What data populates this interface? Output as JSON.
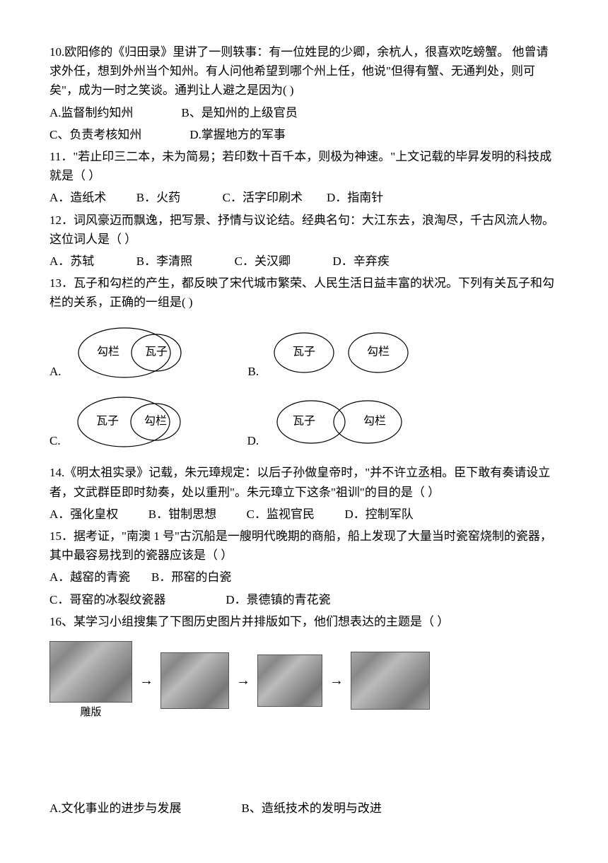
{
  "q10": {
    "text": "10.欧阳修的《归田录》里讲了一则轶事：有一位姓昆的少卿，余杭人，很喜欢吃螃蟹。  他曾请求外任，想到外州当个知州。有人问他希望到哪个州上任，他说\"但得有蟹、无通判处，则可矣\"，成为一时之笑谈。通判让人避之是因为(      )",
    "optA": "A.监督制约知州",
    "optB": "B、是知州的上级官员",
    "optC": "C、负责考核知州",
    "optD": "D.掌握地方的军事"
  },
  "q11": {
    "text": "11．\"若止印三二本，未为简易；若印数十百千本，则极为神速。\"上文记载的毕昇发明的科技成就是（    ）",
    "optA": "A．造纸术",
    "optB": "B．火药",
    "optC": "C．活字印刷术",
    "optD": "D．指南针"
  },
  "q12": {
    "text": "12．词风豪迈而飘逸，把写景、抒情与议论结。经典名句：大江东去，浪淘尽，千古风流人物。这位词人是（      ）",
    "optA": "A．苏轼",
    "optB": "B．李清照",
    "optC": "C．关汉卿",
    "optD": "D．辛弃疾"
  },
  "q13": {
    "text": "13．瓦子和勾栏的产生，都反映了宋代城市繁荣、人民生活日益丰富的状况。下列有关瓦子和勾栏的关系，正确的一组是(   )",
    "labels": {
      "wazi": "瓦子",
      "goulan": "勾栏",
      "A": "A.",
      "B": "B.",
      "C": "C.",
      "D": "D."
    },
    "style": {
      "ellipse_stroke": "#000000",
      "ellipse_fill": "none",
      "stroke_width": 1.2,
      "font_size": 16
    }
  },
  "q14": {
    "text": "14.《明太祖实录》记载，朱元璋规定：以后子孙做皇帝时，\"并不许立丞相。臣下敢有奏请设立者，文武群臣即时劾奏，处以重刑\"。朱元璋立下这条\"祖训\"的目的是（      ）",
    "optA": "A．强化皇权",
    "optB": "B．钳制思想",
    "optC": "C．监视官民",
    "optD": "D．控制军队"
  },
  "q15": {
    "text": "15．据考证，\"南澳 1 号\"古沉船是一艘明代晚期的商船，船上发现了大量当时瓷窑烧制的瓷器，其中最容易找到的瓷器应该是（    ）",
    "optA": "A．越窑的青瓷",
    "optB": "B．邢窑的白瓷",
    "optC": "C．哥窑的冰裂纹瓷器",
    "optD": "D．景德镇的青花瓷"
  },
  "q16": {
    "text": "16、某学习小组搜集了下图历史图片并排版如下，他们想表达的主题是（    ）",
    "caption": "雕版",
    "imgs": {
      "count": 4,
      "sizes": [
        [
          115,
          85
        ],
        [
          95,
          78
        ],
        [
          90,
          72
        ],
        [
          110,
          80
        ]
      ],
      "bg": "#999999"
    },
    "optA": "A.文化事业的进步与发展",
    "optB": "B、造纸技术的发明与改进"
  }
}
